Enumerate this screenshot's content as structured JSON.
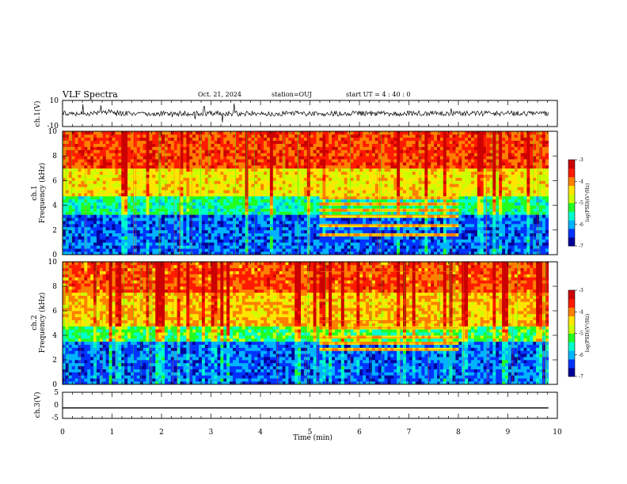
{
  "header": {
    "title": "VLF Spectra",
    "date": "Oct. 21, 2024",
    "station": "station=OUJ",
    "start": "start UT =  4 : 40 : 0"
  },
  "chart_data": [
    {
      "type": "line",
      "name": "waveform-ch1",
      "ylabel": "ch.1(V)",
      "xlim": [
        0,
        10
      ],
      "ylim": [
        -10,
        10
      ],
      "yticks": [
        "10",
        "-10"
      ],
      "baseline": 0
    },
    {
      "type": "heatmap",
      "name": "spectrogram-ch1",
      "ylabel": "Frequency (kHz)",
      "channel_label": "ch.1",
      "xlim": [
        0,
        10
      ],
      "ylim": [
        0,
        10
      ],
      "yticks": [
        "0",
        "2",
        "4",
        "6",
        "8",
        "10"
      ],
      "data_end_min": 9.82,
      "colorbar": {
        "label": "log(PSD)(V²/Hz)",
        "range": [
          -7,
          -3
        ],
        "ticks": [
          "-3",
          "-4",
          "-5",
          "-6",
          "-7"
        ],
        "colormap": [
          "#000099",
          "#0033ff",
          "#00b4ff",
          "#00ffcc",
          "#22ff22",
          "#ccff00",
          "#ffe600",
          "#ff8000",
          "#ff1a00",
          "#cc0000"
        ]
      },
      "features": [
        {
          "kind": "broadband-noise",
          "levels_log_psd": [
            -6.3,
            -5.5,
            -4.5,
            -3.7
          ],
          "band_edges_khz": [
            3.2,
            4.8,
            7.0
          ]
        },
        {
          "kind": "narrowband-lines",
          "t_start_min": 5.2,
          "t_end_min": 8.0,
          "freqs_khz": [
            1.6,
            2.4,
            3.2,
            3.6,
            4.1,
            4.6
          ]
        }
      ]
    },
    {
      "type": "heatmap",
      "name": "spectrogram-ch2",
      "ylabel": "Frequency (kHz)",
      "channel_label": "ch.2",
      "xlim": [
        0,
        10
      ],
      "ylim": [
        0,
        10
      ],
      "yticks": [
        "0",
        "2",
        "4",
        "6",
        "8",
        "10"
      ],
      "data_end_min": 9.82,
      "colorbar": {
        "label": "log(PSD)(V²/Hz)",
        "range": [
          -7,
          -3
        ],
        "ticks": [
          "-3",
          "-4",
          "-5",
          "-6",
          "-7"
        ],
        "colormap": [
          "#000099",
          "#0033ff",
          "#00b4ff",
          "#00ffcc",
          "#22ff22",
          "#ccff00",
          "#ffe600",
          "#ff8000",
          "#ff1a00",
          "#cc0000"
        ]
      },
      "features": [
        {
          "kind": "broadband-noise",
          "levels_log_psd": [
            -6.3,
            -5.3,
            -4.3,
            -3.8
          ],
          "band_edges_khz": [
            3.5,
            4.8,
            7.5
          ]
        },
        {
          "kind": "narrowband-lines",
          "t_start_min": 5.2,
          "t_end_min": 8.0,
          "freqs_khz": [
            2.8,
            3.4,
            3.8,
            4.6,
            5.2,
            9.2
          ]
        }
      ]
    },
    {
      "type": "line",
      "name": "waveform-ch3",
      "ylabel": "ch.3(V)",
      "xlim": [
        0,
        10
      ],
      "ylim": [
        -5,
        5
      ],
      "yticks": [
        "5",
        "0",
        "-5"
      ],
      "x": [
        0,
        9.82
      ],
      "y": [
        -1.0,
        -1.0
      ]
    }
  ],
  "xaxis": {
    "label": "Time (min)",
    "ticks": [
      "0",
      "1",
      "2",
      "3",
      "4",
      "5",
      "6",
      "7",
      "8",
      "9",
      "10"
    ]
  }
}
